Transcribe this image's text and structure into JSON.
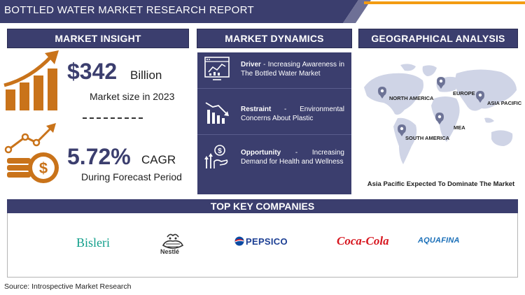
{
  "title": "BOTTLED WATER MARKET RESEARCH REPORT",
  "sections": {
    "insight": "MARKET INSIGHT",
    "dynamics": "MARKET DYNAMICS",
    "geo": "GEOGRAPHICAL ANALYSIS",
    "companies": "TOP KEY COMPANIES"
  },
  "insight": {
    "market_value": "$342",
    "market_unit": "Billion",
    "market_caption": "Market size in 2023",
    "cagr_value": "5.72%",
    "cagr_unit": "CAGR",
    "cagr_caption": "During Forecast Period"
  },
  "dynamics": {
    "driver": {
      "label": "Driver",
      "sep": " - ",
      "text": "Increasing Awareness in The Bottled Water Market",
      "icon": "analytics-screen-icon"
    },
    "restraint": {
      "label": "Restraint",
      "sep": " - ",
      "text": "Environmental Concerns About Plastic",
      "icon": "declining-chart-icon"
    },
    "opportunity": {
      "label": "Opportunity",
      "sep": " - ",
      "text": "Increasing Demand for Health and Wellness",
      "icon": "growth-hand-icon"
    }
  },
  "geo": {
    "regions": [
      "NORTH AMERICA",
      "EUROPE",
      "ASIA PACIFIC",
      "MEA",
      "SOUTH AMERICA"
    ],
    "caption": "Asia Pacific Expected To Dominate The Market"
  },
  "companies": [
    "Bisleri",
    "Nestlé",
    "PEPSICO",
    "Coca-Cola",
    "AQUAFINA"
  ],
  "source": "Source: Introspective Market Research",
  "colors": {
    "navy": "#3b3e6e",
    "orange": "#f39c12",
    "icon_orange": "#c9731a"
  }
}
